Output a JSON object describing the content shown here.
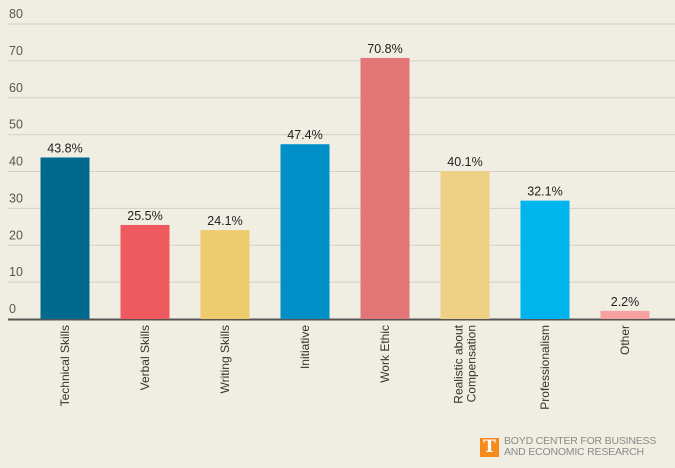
{
  "chart_data": {
    "type": "bar",
    "title": "",
    "xlabel": "",
    "ylabel": "",
    "ylim": [
      0,
      80
    ],
    "yticks": [
      0,
      10,
      20,
      30,
      40,
      50,
      60,
      70,
      80
    ],
    "grid": true,
    "categories": [
      "Technical Skills",
      "Verbal Skills",
      "Writing Skills",
      "Initiative",
      "Work Ethic",
      "Realistic about Compensation",
      "Professionalism",
      "Other"
    ],
    "category_lines": [
      [
        "Technical Skills"
      ],
      [
        "Verbal Skills"
      ],
      [
        "Writing Skills"
      ],
      [
        "Initiative"
      ],
      [
        "Work Ethic"
      ],
      [
        "Realistic about",
        "Compensation"
      ],
      [
        "Professionalism"
      ],
      [
        "Other"
      ]
    ],
    "values": [
      43.8,
      25.5,
      24.1,
      47.4,
      70.8,
      40.1,
      32.1,
      2.2
    ],
    "data_labels": [
      "43.8%",
      "25.5%",
      "24.1%",
      "47.4%",
      "70.8%",
      "40.1%",
      "32.1%",
      "2.2%"
    ],
    "colors": [
      "#006a8e",
      "#ee5a5e",
      "#eecb6d",
      "#0090c7",
      "#e27575",
      "#eed085",
      "#00b4ee",
      "#f6a0a0"
    ]
  },
  "branding": {
    "logo_letter": "T",
    "line1": "BOYD CENTER FOR BUSINESS",
    "line2": "AND ECONOMIC RESEARCH",
    "logo_color": "#f78a1d"
  }
}
